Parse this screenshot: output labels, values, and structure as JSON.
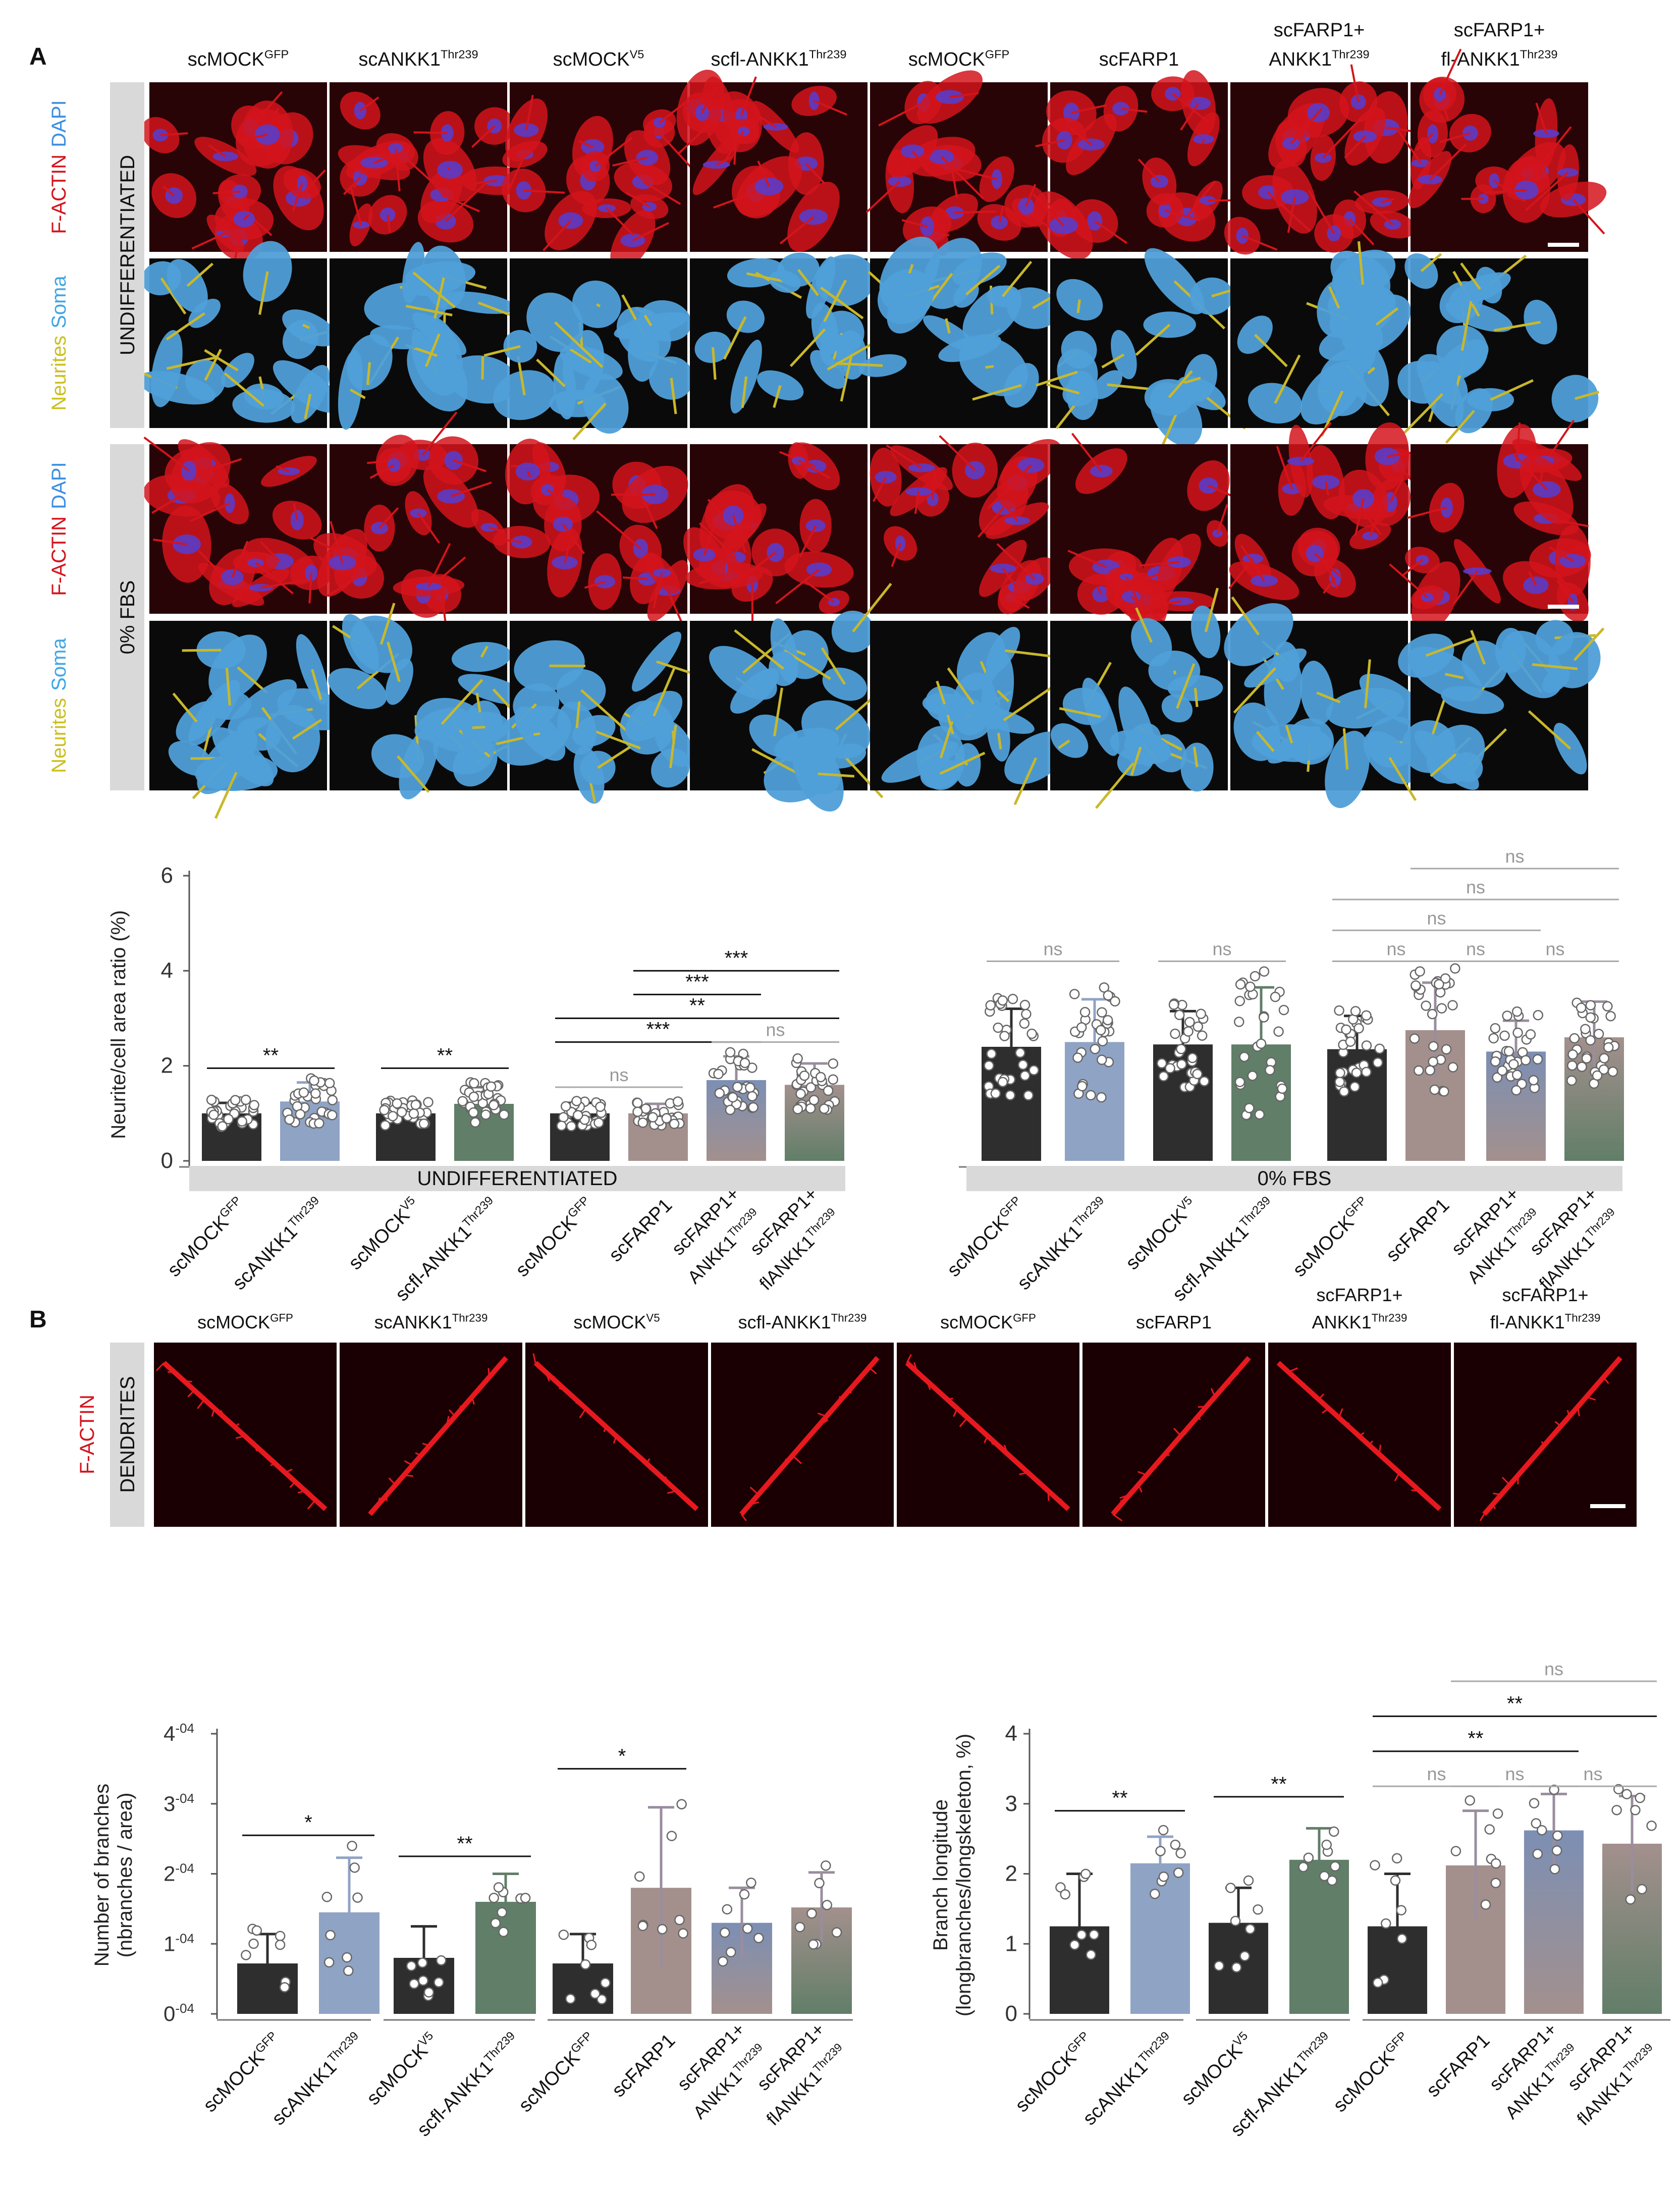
{
  "colors": {
    "actin_red": "#d4141c",
    "dapi_blue": "#5a3cc8",
    "soma_blue": "#4f9fd8",
    "neurite_yellow": "#c9b82a",
    "bar_black": "#2e2e2e",
    "bar_blue": "#8fa3c4",
    "bar_green": "#617e68",
    "bar_rose": "#a3908d",
    "gradient_top": "#7c8fb4",
    "ns_grey": "#a8a8a8",
    "band_grey": "#d9d9d9"
  },
  "panel_a": {
    "letter": "A",
    "columns": [
      {
        "base": "scMOCK",
        "sup": "GFP"
      },
      {
        "base": "scANKK1",
        "sup": "Thr239"
      },
      {
        "base": "scMOCK",
        "sup": "V5"
      },
      {
        "base": "scfl-ANKK1",
        "sup": "Thr239"
      },
      {
        "base": "scMOCK",
        "sup": "GFP"
      },
      {
        "base": "scFARP1",
        "sup": ""
      },
      {
        "line1": "scFARP1+",
        "base": "ANKK1",
        "sup": "Thr239"
      },
      {
        "line1": "scFARP1+",
        "base": "fl-ANKK1",
        "sup": "Thr239"
      }
    ],
    "condition_undiff": "UNDIFFERENTIATED",
    "condition_fbs": "0% FBS",
    "stain_factin": "F-ACTIN",
    "stain_dapi": "DAPI",
    "stain_neurites": "Neurites",
    "stain_soma": "Soma"
  },
  "panel_b": {
    "letter": "B",
    "columns": [
      {
        "base": "scMOCK",
        "sup": "GFP"
      },
      {
        "base": "scANKK1",
        "sup": "Thr239"
      },
      {
        "base": "scMOCK",
        "sup": "V5"
      },
      {
        "base": "scfl-ANKK1",
        "sup": "Thr239"
      },
      {
        "base": "scMOCK",
        "sup": "GFP"
      },
      {
        "base": "scFARP1",
        "sup": ""
      },
      {
        "line1": "scFARP1+",
        "base": "ANKK1",
        "sup": "Thr239"
      },
      {
        "line1": "scFARP1+",
        "base": "fl-ANKK1",
        "sup": "Thr239"
      }
    ],
    "condition": "DENDRITES",
    "stain_factin": "F-ACTIN"
  },
  "chart_data": [
    {
      "id": "neurite_undiff",
      "type": "bar",
      "ylabel": "Neurite/cell area ratio (%)",
      "ylim": [
        0,
        6
      ],
      "yticks": [
        "0",
        "2",
        "4",
        "6"
      ],
      "band_label": "UNDIFFERENTIATED",
      "categories": [
        {
          "base": "scMOCK",
          "sup": "GFP"
        },
        {
          "base": "scANKK1",
          "sup": "Thr239"
        },
        {
          "base": "scMOCK",
          "sup": "V5"
        },
        {
          "base": "scfl-ANKK1",
          "sup": "Thr239"
        },
        {
          "base": "scMOCK",
          "sup": "GFP"
        },
        {
          "base": "scFARP1",
          "sup": ""
        },
        {
          "line1": "scFARP1+",
          "base": "ANKK1",
          "sup": "Thr239"
        },
        {
          "line1": "scFARP1+",
          "base": "flANKK1",
          "sup": "Thr239"
        }
      ],
      "values": [
        1.0,
        1.25,
        1.0,
        1.2,
        1.0,
        1.0,
        1.7,
        1.6
      ],
      "errors": [
        0.22,
        0.4,
        0.22,
        0.35,
        0.22,
        0.2,
        0.5,
        0.45
      ],
      "colors": [
        "black",
        "blue",
        "black",
        "green",
        "black",
        "rose",
        "gradrose",
        "gradgreen"
      ],
      "significance": [
        {
          "from": 0,
          "to": 1,
          "label": "**",
          "y": 1.95
        },
        {
          "from": 2,
          "to": 3,
          "label": "**",
          "y": 1.95
        },
        {
          "from": 4,
          "to": 5,
          "label": "ns",
          "y": 1.55
        },
        {
          "from": 4,
          "to": 6,
          "label": "***",
          "y": 2.5
        },
        {
          "from": 6,
          "to": 7,
          "label": "ns",
          "y": 2.5
        },
        {
          "from": 4,
          "to": 7,
          "label": "**",
          "y": 3.0
        },
        {
          "from": 5,
          "to": 6,
          "label": "***",
          "y": 3.5
        },
        {
          "from": 5,
          "to": 7,
          "label": "***",
          "y": 4.0
        }
      ]
    },
    {
      "id": "neurite_fbs",
      "type": "bar",
      "ylabel": "",
      "ylim": [
        0,
        6
      ],
      "band_label": "0% FBS",
      "categories": [
        {
          "base": "scMOCK",
          "sup": "GFP"
        },
        {
          "base": "scANKK1",
          "sup": "Thr239"
        },
        {
          "base": "scMOCK",
          "sup": "V5"
        },
        {
          "base": "scfl-ANKK1",
          "sup": "Thr239"
        },
        {
          "base": "scMOCK",
          "sup": "GFP"
        },
        {
          "base": "scFARP1",
          "sup": ""
        },
        {
          "line1": "scFARP1+",
          "base": "ANKK1",
          "sup": "Thr239"
        },
        {
          "line1": "scFARP1+",
          "base": "flANKK1",
          "sup": "Thr239"
        }
      ],
      "values": [
        2.4,
        2.5,
        2.45,
        2.45,
        2.35,
        2.75,
        2.3,
        2.6
      ],
      "errors": [
        0.8,
        0.9,
        0.7,
        1.2,
        0.7,
        1.0,
        0.65,
        0.75
      ],
      "colors": [
        "black",
        "blue",
        "black",
        "green",
        "black",
        "rose",
        "gradrose",
        "gradgreen"
      ],
      "significance": [
        {
          "from": 0,
          "to": 1,
          "label": "ns",
          "y": 4.2
        },
        {
          "from": 2,
          "to": 3,
          "label": "ns",
          "y": 4.2
        },
        {
          "from": 4,
          "to": 5,
          "label": "ns",
          "y": 4.2
        },
        {
          "from": 5,
          "to": 6,
          "label": "ns",
          "y": 4.2
        },
        {
          "from": 6,
          "to": 7,
          "label": "ns",
          "y": 4.2
        },
        {
          "from": 4,
          "to": 6,
          "label": "ns",
          "y": 4.85
        },
        {
          "from": 4,
          "to": 7,
          "label": "ns",
          "y": 5.5
        },
        {
          "from": 5,
          "to": 7,
          "label": "ns",
          "y": 6.15
        }
      ]
    },
    {
      "id": "branches_number",
      "type": "bar",
      "ylabel": "Number of branches\n(nbranches / area)",
      "ylim": [
        0,
        4
      ],
      "yticks": [
        {
          "base": "0",
          "sup": "-04"
        },
        {
          "base": "1",
          "sup": "-04"
        },
        {
          "base": "2",
          "sup": "-04"
        },
        {
          "base": "3",
          "sup": "-04"
        },
        {
          "base": "4",
          "sup": "-04"
        }
      ],
      "categories": [
        {
          "base": "scMOCK",
          "sup": "GFP"
        },
        {
          "base": "scANKK1",
          "sup": "Thr239"
        },
        {
          "base": "scMOCK",
          "sup": "V5"
        },
        {
          "base": "scfl-ANKK1",
          "sup": "Thr239"
        },
        {
          "base": "scMOCK",
          "sup": "GFP"
        },
        {
          "base": "scFARP1",
          "sup": ""
        },
        {
          "line1": "scFARP1+",
          "base": "ANKK1",
          "sup": "Thr239"
        },
        {
          "line1": "scFARP1+",
          "base": "flANKK1",
          "sup": "Thr239"
        }
      ],
      "values": [
        0.72,
        1.45,
        0.8,
        1.6,
        0.72,
        1.8,
        1.3,
        1.52
      ],
      "errors": [
        0.42,
        0.78,
        0.45,
        0.4,
        0.42,
        1.15,
        0.5,
        0.5
      ],
      "colors": [
        "black",
        "blue",
        "black",
        "green",
        "black",
        "rose",
        "gradrose",
        "gradgreen"
      ],
      "significance": [
        {
          "from": 0,
          "to": 1,
          "label": "*",
          "y": 2.55
        },
        {
          "from": 2,
          "to": 3,
          "label": "**",
          "y": 2.25
        },
        {
          "from": 4,
          "to": 5,
          "label": "*",
          "y": 3.5
        }
      ]
    },
    {
      "id": "branch_longitude",
      "type": "bar",
      "ylabel": "Branch longitude\n(longbranches/longskeleton, %)",
      "ylim": [
        0,
        4
      ],
      "yticks": [
        "0",
        "1",
        "2",
        "3",
        "4"
      ],
      "categories": [
        {
          "base": "scMOCK",
          "sup": "GFP"
        },
        {
          "base": "scANKK1",
          "sup": "Thr239"
        },
        {
          "base": "scMOCK",
          "sup": "V5"
        },
        {
          "base": "scfl-ANKK1",
          "sup": "Thr239"
        },
        {
          "base": "scMOCK",
          "sup": "GFP"
        },
        {
          "base": "scFARP1",
          "sup": ""
        },
        {
          "line1": "scFARP1+",
          "base": "ANKK1",
          "sup": "Thr239"
        },
        {
          "line1": "scFARP1+",
          "base": "flANKK1",
          "sup": "Thr239"
        }
      ],
      "values": [
        1.25,
        2.15,
        1.3,
        2.2,
        1.25,
        2.12,
        2.62,
        2.43
      ],
      "errors": [
        0.75,
        0.38,
        0.5,
        0.45,
        0.75,
        0.78,
        0.52,
        0.68
      ],
      "colors": [
        "black",
        "blue",
        "black",
        "green",
        "black",
        "rose",
        "gradrose",
        "gradgreen"
      ],
      "significance": [
        {
          "from": 0,
          "to": 1,
          "label": "**",
          "y": 2.9
        },
        {
          "from": 2,
          "to": 3,
          "label": "**",
          "y": 3.1
        },
        {
          "from": 4,
          "to": 5,
          "label": "ns",
          "y": 3.25
        },
        {
          "from": 5,
          "to": 6,
          "label": "ns",
          "y": 3.25
        },
        {
          "from": 6,
          "to": 7,
          "label": "ns",
          "y": 3.25
        },
        {
          "from": 4,
          "to": 6,
          "label": "**",
          "y": 3.75
        },
        {
          "from": 4,
          "to": 7,
          "label": "**",
          "y": 4.25
        },
        {
          "from": 5,
          "to": 7,
          "label": "ns",
          "y": 4.75
        }
      ]
    }
  ]
}
